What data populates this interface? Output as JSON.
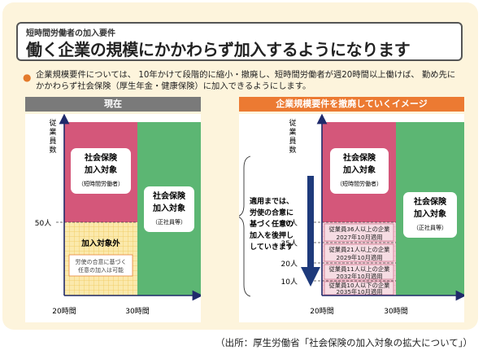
{
  "header": {
    "subtitle": "短時間労働者の加入要件",
    "title": "働く企業の規模にかかわらず加入するようになります"
  },
  "description": "企業規模要件については、 10年かけて段階的に縮小・撤廃し、短時間労働者が週20時間以上働けば、 勤め先にかかわらず社会保険（厚生年金・健康保険）に加入できるようにします。",
  "left_panel": {
    "header": "現在",
    "y_axis_label": [
      "従",
      "業",
      "員",
      "数"
    ],
    "tick_50": "50人",
    "x_tick_20": "20時間",
    "x_tick_30": "30時間",
    "pink_box": {
      "line1": "社会保険",
      "line2": "加入対象",
      "line3": "（短時間労働者）"
    },
    "green_box": {
      "line1": "社会保険",
      "line2": "加入対象",
      "line3": "（正社員等）"
    },
    "excluded_label": "加入対象外",
    "excluded_note": {
      "line1": "労使の合意に基づく",
      "line2": "任意の加入は可能"
    }
  },
  "right_panel": {
    "header": "企業規模要件を撤廃していくイメージ",
    "y_axis_label": [
      "従",
      "業",
      "員",
      "数"
    ],
    "ticks": [
      "50人",
      "35人",
      "20人",
      "10人"
    ],
    "x_tick_20": "20時間",
    "x_tick_30": "30時間",
    "note": [
      "適用までは、",
      "労使の合意に",
      "基づく任意の",
      "加入を後押し",
      "していきます"
    ],
    "pink_box": {
      "line1": "社会保険",
      "line2": "加入対象",
      "line3": "（短時間労働者）"
    },
    "green_box": {
      "line1": "社会保険",
      "line2": "加入対象",
      "line3": "（正社員等）"
    },
    "stages": [
      {
        "line1": "従業員36人以上の企業",
        "line2": "2027年10月適用"
      },
      {
        "line1": "従業員21人以上の企業",
        "line2": "2029年10月適用"
      },
      {
        "line1": "従業員11人以上の企業",
        "line2": "2032年10月適用"
      },
      {
        "line1": "従業員10人以下の企業",
        "line2": "2035年10月適用"
      }
    ]
  },
  "source": "（出所：厚生労働省「社会保険の加入対象の拡大について」）",
  "colors": {
    "pink": "#d4577a",
    "green": "#5cb673",
    "yellow_check": "#f8e08c",
    "orange": "#ec7a32",
    "gray": "#7a7a7a",
    "arrow": "#1e3a7b",
    "cream": "#fdf4dc"
  }
}
